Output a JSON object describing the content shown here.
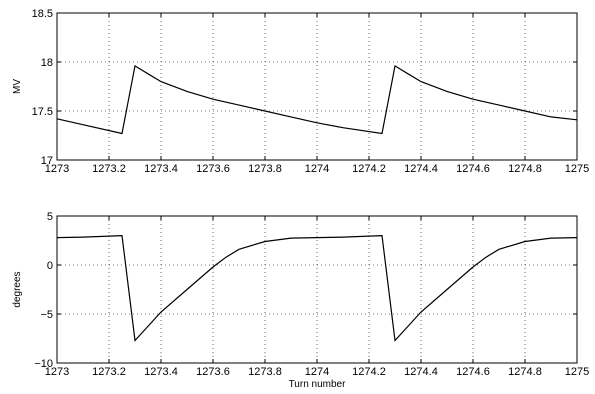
{
  "chart_data": [
    {
      "type": "line",
      "title": "",
      "xlabel": "",
      "ylabel": "MV",
      "xlim": [
        1273,
        1275
      ],
      "ylim": [
        17,
        18.5
      ],
      "xticks": [
        1273,
        1273.2,
        1273.4,
        1273.6,
        1273.8,
        1274,
        1274.2,
        1274.4,
        1274.6,
        1274.8,
        1275
      ],
      "yticks": [
        17,
        17.5,
        18,
        18.5
      ],
      "xtick_labels": [
        "1273",
        "1273.2",
        "1273.4",
        "1273.6",
        "1273.8",
        "1274",
        "1274.2",
        "1274.4",
        "1274.6",
        "1274.8",
        "1275"
      ],
      "ytick_labels": [
        "17",
        "17.5",
        "18",
        "18.5"
      ],
      "grid": true,
      "series": [
        {
          "x": [
            1273.0,
            1273.1,
            1273.25,
            1273.3,
            1273.35,
            1273.4,
            1273.5,
            1273.6,
            1273.7,
            1273.8,
            1273.9,
            1274.0,
            1274.1,
            1274.25,
            1274.3,
            1274.35,
            1274.4,
            1274.5,
            1274.6,
            1274.7,
            1274.8,
            1274.9,
            1275.0
          ],
          "y": [
            17.42,
            17.36,
            17.27,
            17.96,
            17.88,
            17.8,
            17.7,
            17.62,
            17.56,
            17.5,
            17.44,
            17.38,
            17.33,
            17.27,
            17.96,
            17.88,
            17.8,
            17.7,
            17.62,
            17.56,
            17.5,
            17.44,
            17.41
          ]
        }
      ]
    },
    {
      "type": "line",
      "title": "",
      "xlabel": "Turn number",
      "ylabel": "degrees",
      "xlim": [
        1273,
        1275
      ],
      "ylim": [
        -10,
        5
      ],
      "xticks": [
        1273,
        1273.2,
        1273.4,
        1273.6,
        1273.8,
        1274,
        1274.2,
        1274.4,
        1274.6,
        1274.8,
        1275
      ],
      "yticks": [
        -10,
        -5,
        0,
        5
      ],
      "xtick_labels": [
        "1273",
        "1273.2",
        "1273.4",
        "1273.6",
        "1273.8",
        "1274",
        "1274.2",
        "1274.4",
        "1274.6",
        "1274.8",
        "1275"
      ],
      "ytick_labels": [
        "−10",
        "−5",
        "0",
        "5"
      ],
      "grid": true,
      "series": [
        {
          "x": [
            1273.0,
            1273.1,
            1273.25,
            1273.3,
            1273.4,
            1273.5,
            1273.6,
            1273.65,
            1273.7,
            1273.8,
            1273.9,
            1274.0,
            1274.1,
            1274.25,
            1274.3,
            1274.4,
            1274.5,
            1274.6,
            1274.65,
            1274.7,
            1274.8,
            1274.9,
            1275.0
          ],
          "y": [
            2.8,
            2.85,
            3.0,
            -7.7,
            -4.8,
            -2.5,
            -0.2,
            0.8,
            1.6,
            2.4,
            2.75,
            2.8,
            2.85,
            3.0,
            -7.7,
            -4.8,
            -2.5,
            -0.2,
            0.8,
            1.6,
            2.4,
            2.75,
            2.8
          ]
        }
      ]
    }
  ]
}
